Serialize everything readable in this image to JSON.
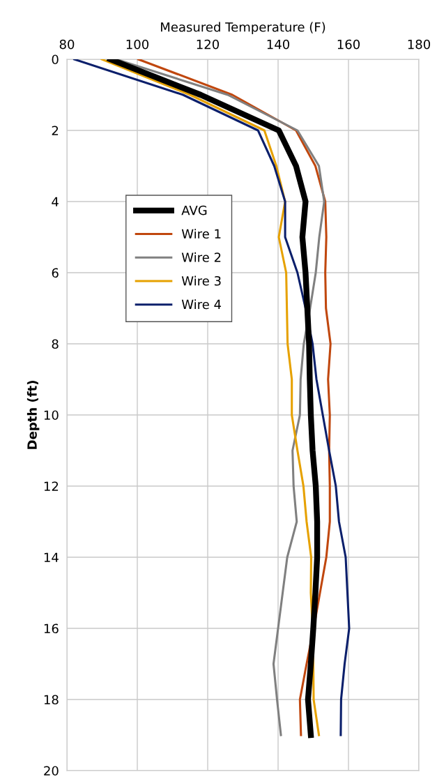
{
  "chart_data": {
    "type": "line",
    "xlabel": "Measured Temperature (F)",
    "ylabel": "Depth (ft)",
    "xlim": [
      80,
      180
    ],
    "xticks": [
      80,
      100,
      120,
      140,
      160,
      180
    ],
    "ylim": [
      20,
      0
    ],
    "yticks": [
      0,
      2,
      4,
      6,
      8,
      10,
      12,
      14,
      16,
      18,
      20
    ],
    "grid": true,
    "legend": "left",
    "marker": "none",
    "line_style": "solid",
    "series": [
      {
        "name": "AVG",
        "color": "#000000",
        "x": [
          92.3,
          118,
          140.2,
          145.1,
          147.8,
          146.9,
          147.8,
          148.3,
          148.8,
          149,
          149.3,
          149.8,
          150.7,
          151.1,
          151.1,
          150.6,
          150,
          149.3,
          148.5,
          149.3
        ],
        "values": [
          0,
          1,
          2,
          3,
          4,
          5,
          6,
          7,
          8,
          9,
          10,
          11,
          12,
          13,
          14,
          15,
          16,
          17,
          18,
          19
        ]
      },
      {
        "name": "Wire 1",
        "color": "#c0470e",
        "x": [
          100.3,
          127,
          145.1,
          150.6,
          153.4,
          153.7,
          153.4,
          153.6,
          154.9,
          154.2,
          154.7,
          154.5,
          154.7,
          154.7,
          153.7,
          151.9,
          150.1,
          148.1,
          146.2,
          146.5
        ],
        "values": [
          0,
          1,
          2,
          3,
          4,
          5,
          6,
          7,
          8,
          9,
          10,
          11,
          12,
          13,
          14,
          15,
          16,
          17,
          18,
          19
        ]
      },
      {
        "name": "Wire 2",
        "color": "#808080",
        "x": [
          94,
          125.7,
          145.5,
          151.6,
          153.1,
          151.7,
          150.7,
          149.1,
          147.3,
          146.4,
          146.2,
          144.1,
          144.4,
          145.3,
          142.6,
          141.3,
          140,
          138.7,
          139.7,
          140.8
        ],
        "values": [
          0,
          1,
          2,
          3,
          4,
          5,
          6,
          7,
          8,
          9,
          10,
          11,
          12,
          13,
          14,
          15,
          16,
          17,
          18,
          19
        ]
      },
      {
        "name": "Wire 3",
        "color": "#e6a100",
        "x": [
          89.9,
          115,
          136.1,
          139.5,
          142,
          140.2,
          142.3,
          142.5,
          142.7,
          143.9,
          143.9,
          145.5,
          147.2,
          148.1,
          149.4,
          149.3,
          149.8,
          150,
          150.1,
          151.6
        ],
        "values": [
          0,
          1,
          2,
          3,
          4,
          5,
          6,
          7,
          8,
          9,
          10,
          11,
          12,
          13,
          14,
          15,
          16,
          17,
          18,
          19
        ]
      },
      {
        "name": "Wire 4",
        "color": "#0b1f6b",
        "x": [
          82.1,
          113,
          134.3,
          138.9,
          142,
          142,
          145.5,
          147.8,
          149.8,
          150.9,
          152.7,
          154.5,
          156.4,
          157.3,
          159.2,
          159.7,
          160.2,
          158.9,
          157.9,
          157.8
        ],
        "values": [
          0,
          1,
          2,
          3,
          4,
          5,
          6,
          7,
          8,
          9,
          10,
          11,
          12,
          13,
          14,
          15,
          16,
          17,
          18,
          19
        ]
      }
    ]
  }
}
